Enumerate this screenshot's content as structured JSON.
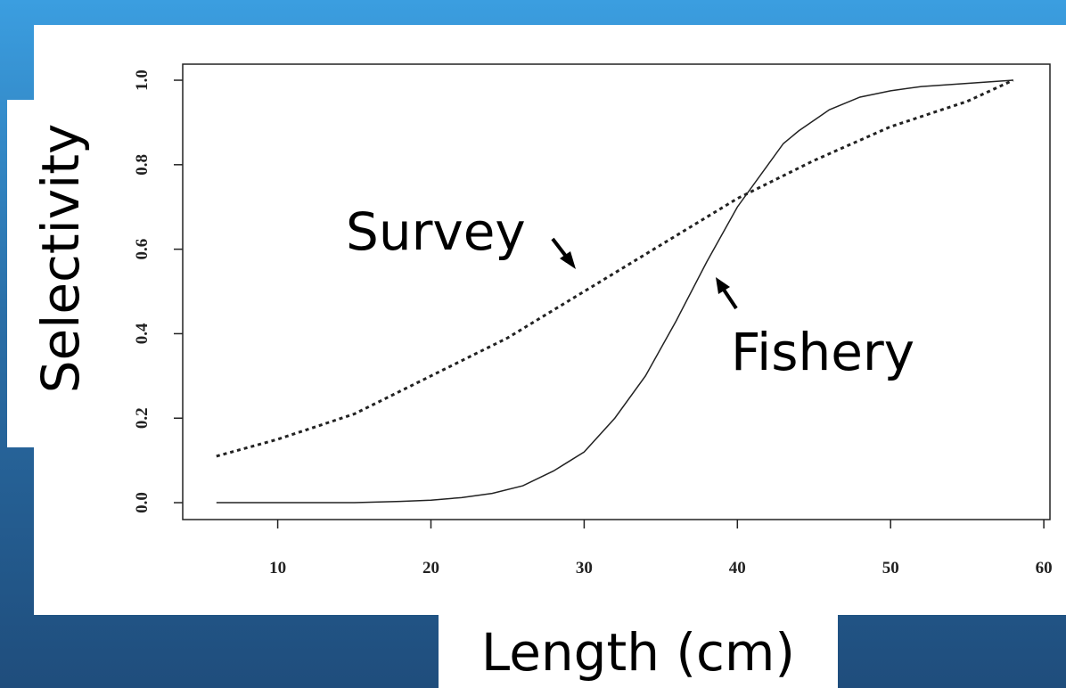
{
  "chart_data": {
    "type": "line",
    "x_label": "Length (cm)",
    "y_label": "Selectivity",
    "xlim": [
      3.8,
      60.4
    ],
    "ylim": [
      -0.04,
      1.038
    ],
    "xticks": [
      10,
      20,
      30,
      40,
      50,
      60
    ],
    "yticks": [
      {
        "value": 0,
        "label": "0.0"
      },
      0.2,
      0.4,
      0.6,
      0.8,
      {
        "value": 1,
        "label": "1.0"
      }
    ],
    "series": [
      {
        "name": "Survey",
        "color": "#222222",
        "dash": "dotted",
        "x": [
          6,
          10,
          15,
          20,
          25,
          30,
          35,
          40,
          45,
          50,
          55,
          58
        ],
        "values": [
          0.11,
          0.15,
          0.21,
          0.3,
          0.39,
          0.5,
          0.61,
          0.72,
          0.81,
          0.89,
          0.95,
          1.0
        ]
      },
      {
        "name": "Fishery",
        "color": "#222222",
        "dash": "solid",
        "x": [
          6,
          10,
          15,
          18,
          20,
          22,
          24,
          26,
          28,
          30,
          32,
          34,
          36,
          38,
          40,
          42,
          43,
          44,
          46,
          48,
          50,
          52,
          54,
          56,
          58
        ],
        "values": [
          0,
          0,
          0,
          0.003,
          0.006,
          0.012,
          0.022,
          0.04,
          0.075,
          0.12,
          0.2,
          0.3,
          0.43,
          0.57,
          0.7,
          0.8,
          0.85,
          0.88,
          0.93,
          0.96,
          0.975,
          0.985,
          0.99,
          0.995,
          1.0
        ]
      }
    ]
  }
}
